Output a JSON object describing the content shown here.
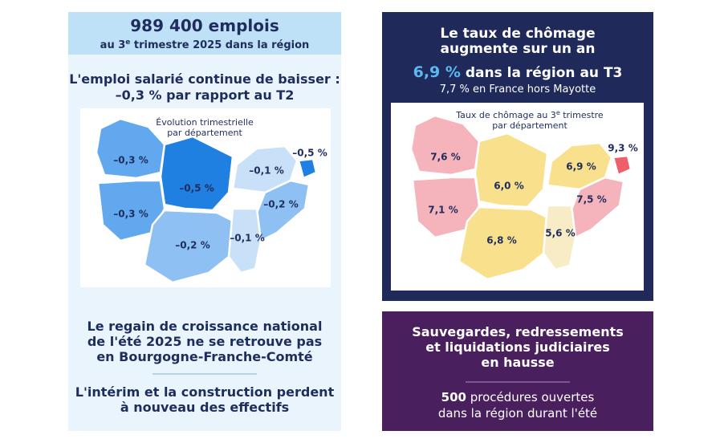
{
  "employment": {
    "headline": "989 400 emplois",
    "subline": {
      "before": "au 3",
      "sup": "e",
      "after": " trimestre 2025 dans la région"
    },
    "subtitle": [
      "L'emploi salarié continue de baisser :",
      "–0,3 % par rapport au T2"
    ],
    "map": {
      "title": [
        "Évolution trimestrielle",
        "par département"
      ],
      "labels": [
        "–0,3 %",
        "–0,3 %",
        "–0,5 %",
        "–0,2 %",
        "–0,1 %",
        "–0,2 %",
        "–0,1 %",
        "–0,5 %"
      ]
    },
    "findings": [
      [
        "Le regain de croissance national",
        "de l'été 2025 ne se retrouve pas",
        "en Bourgogne-Franche-Comté"
      ],
      [
        "L'intérim et la construction perdent",
        "à nouveau des effectifs"
      ]
    ]
  },
  "unemployment": {
    "title": [
      "Le taux de chômage",
      "augmente sur un an"
    ],
    "region": {
      "value": "6,9 %",
      "text": " dans la région au T3"
    },
    "france": {
      "value": "7,7 %",
      "text": " en France hors Mayotte"
    },
    "map": {
      "title": {
        "before": "Taux de chômage au 3",
        "sup": "e",
        "after": " trimestre",
        "line2": "par département"
      },
      "labels": [
        "7,6 %",
        "7,1 %",
        "6,0 %",
        "6,8 %",
        "6,9 %",
        "7,5 %",
        "5,6 %",
        "9,3 %"
      ]
    }
  },
  "insolvency": {
    "title": [
      "Sauvegardes, redressements",
      "et liquidations judiciaires",
      "en hausse"
    ],
    "count": {
      "value": "500",
      "text": " procédures ouvertes"
    },
    "line2": "dans la région durant l'été"
  }
}
